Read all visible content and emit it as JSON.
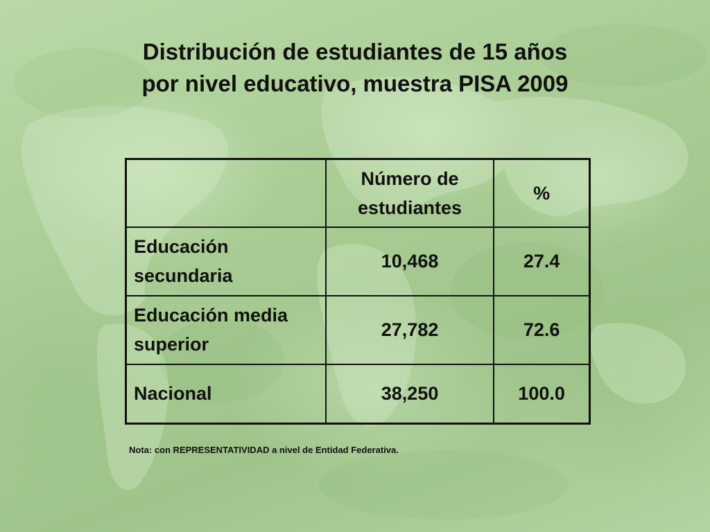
{
  "title_line1": "Distribución de estudiantes de 15 años",
  "title_line2": "por nivel educativo, muestra PISA 2009",
  "table": {
    "headers": [
      "",
      "Número de estudiantes",
      "%"
    ],
    "rows": [
      {
        "label": "Educación secundaria",
        "count": "10,468",
        "percent": "27.4"
      },
      {
        "label": "Educación media superior",
        "count": "27,782",
        "percent": "72.6"
      },
      {
        "label": "Nacional",
        "count": "38,250",
        "percent": "100.0"
      }
    ]
  },
  "footnote": "Nota: con REPRESENTATIVIDAD a nivel de Entidad Federativa.",
  "colors": {
    "background": "#a9cc94",
    "text": "#111111",
    "border": "#111111"
  },
  "chart_data": {
    "type": "table",
    "title": "Distribución de estudiantes de 15 años por nivel educativo, muestra PISA 2009",
    "columns": [
      "",
      "Número de estudiantes",
      "%"
    ],
    "rows": [
      [
        "Educación secundaria",
        10468,
        27.4
      ],
      [
        "Educación media superior",
        27782,
        72.6
      ],
      [
        "Nacional",
        38250,
        100.0
      ]
    ],
    "note": "Nota: con REPRESENTATIVIDAD a nivel de Entidad Federativa."
  }
}
